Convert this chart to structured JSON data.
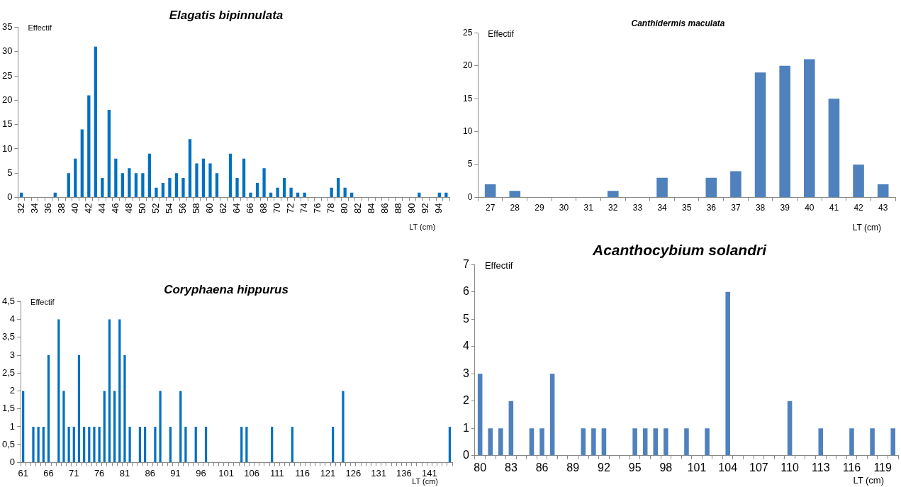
{
  "chart_data": [
    {
      "type": "bar",
      "title": "Elagatis bipinnulata",
      "xlabel": "LT (cm)",
      "ylabel": "Effectif",
      "color": "#0070c0",
      "categories": [
        "32",
        null,
        "34",
        null,
        "36",
        null,
        "38",
        null,
        "40",
        null,
        "42",
        null,
        "44",
        null,
        "46",
        null,
        "48",
        null,
        "50",
        null,
        "52",
        null,
        "54",
        null,
        "56",
        null,
        "58",
        null,
        "60",
        null,
        "62",
        null,
        "64",
        null,
        "66",
        null,
        "68",
        null,
        "70",
        null,
        "72",
        null,
        "74",
        null,
        "76",
        null,
        "78",
        null,
        "80",
        null,
        "82",
        null,
        "84",
        null,
        "86",
        null,
        "88",
        null,
        "90",
        null,
        "92",
        null,
        "94",
        null
      ],
      "values": [
        1,
        0,
        0,
        0,
        0,
        1,
        0,
        5,
        8,
        14,
        21,
        31,
        4,
        18,
        8,
        5,
        6,
        5,
        5,
        9,
        2,
        3,
        4,
        5,
        4,
        12,
        7,
        8,
        7,
        5,
        0,
        9,
        4,
        8,
        1,
        3,
        6,
        1,
        2,
        4,
        2,
        1,
        1,
        0,
        0,
        0,
        2,
        4,
        2,
        1,
        0,
        0,
        0,
        0,
        0,
        0,
        0,
        0,
        0,
        1,
        0,
        0,
        1,
        1
      ],
      "ylim": [
        0,
        35
      ],
      "yticks": [
        0,
        5,
        10,
        15,
        20,
        25,
        30,
        35
      ]
    },
    {
      "type": "bar",
      "title": "Canthidermis maculata",
      "xlabel": "LT (cm)",
      "ylabel": "Effectif",
      "color": "#4f81bd",
      "categories": [
        "27",
        "28",
        "29",
        "30",
        "31",
        "32",
        "33",
        "34",
        "35",
        "36",
        "37",
        "38",
        "39",
        "40",
        "41",
        "42",
        "43"
      ],
      "values": [
        2,
        1,
        0,
        0,
        0,
        1,
        0,
        3,
        0,
        3,
        4,
        19,
        20,
        21,
        15,
        5,
        2
      ],
      "ylim": [
        0,
        25
      ],
      "yticks": [
        0,
        5,
        10,
        15,
        20,
        25
      ]
    },
    {
      "type": "bar",
      "title": "Coryphaena hippurus",
      "xlabel": "LT (cm)",
      "ylabel": "Effectif",
      "color": "#0070c0",
      "categories": [
        "61",
        null,
        null,
        null,
        null,
        "66",
        null,
        null,
        null,
        null,
        "71",
        null,
        null,
        null,
        null,
        "76",
        null,
        null,
        null,
        null,
        "81",
        null,
        null,
        null,
        null,
        "86",
        null,
        null,
        null,
        null,
        "91",
        null,
        null,
        null,
        null,
        "96",
        null,
        null,
        null,
        null,
        "101",
        null,
        null,
        null,
        null,
        "106",
        null,
        null,
        null,
        null,
        "111",
        null,
        null,
        null,
        null,
        "116",
        null,
        null,
        null,
        null,
        "121",
        null,
        null,
        null,
        null,
        "126",
        null,
        null,
        null,
        null,
        "131",
        null,
        null,
        null,
        null,
        "136",
        null,
        null,
        null,
        null,
        "141",
        null,
        null,
        null,
        null
      ],
      "values": [
        2,
        0,
        1,
        1,
        1,
        3,
        0,
        4,
        2,
        1,
        1,
        3,
        1,
        1,
        1,
        1,
        2,
        4,
        2,
        4,
        3,
        1,
        0,
        1,
        1,
        0,
        1,
        2,
        0,
        1,
        0,
        2,
        1,
        0,
        1,
        0,
        1,
        0,
        0,
        0,
        0,
        0,
        0,
        1,
        1,
        0,
        0,
        0,
        0,
        1,
        0,
        0,
        0,
        1,
        0,
        0,
        0,
        0,
        0,
        0,
        0,
        1,
        0,
        2,
        0,
        0,
        0,
        0,
        0,
        0,
        0,
        0,
        0,
        0,
        0,
        0,
        0,
        0,
        0,
        0,
        0,
        0,
        0,
        0,
        1
      ],
      "ylim": [
        0,
        4.5
      ],
      "yticks": [
        0,
        {
          "value": 0.5,
          "label": "0,5"
        },
        1,
        {
          "value": 1.5,
          "label": "1,5"
        },
        2,
        {
          "value": 2.5,
          "label": "2,5"
        },
        3,
        {
          "value": 3.5,
          "label": "3,5"
        },
        4,
        {
          "value": 4.5,
          "label": "4,5"
        }
      ]
    },
    {
      "type": "bar",
      "title": "Acanthocybium solandri",
      "xlabel": "LT (cm)",
      "ylabel": "Effectif",
      "color": "#4f81bd",
      "categories": [
        "80",
        null,
        null,
        "83",
        null,
        null,
        "86",
        null,
        null,
        "89",
        null,
        null,
        "92",
        null,
        null,
        "95",
        null,
        null,
        "98",
        null,
        null,
        "101",
        null,
        null,
        "104",
        null,
        null,
        "107",
        null,
        null,
        "110",
        null,
        null,
        "113",
        null,
        null,
        "116",
        null,
        null,
        "119",
        null
      ],
      "values": [
        3,
        1,
        1,
        2,
        0,
        1,
        1,
        3,
        0,
        0,
        1,
        1,
        1,
        0,
        0,
        1,
        1,
        1,
        1,
        0,
        1,
        0,
        1,
        0,
        6,
        0,
        0,
        0,
        0,
        0,
        2,
        0,
        0,
        1,
        0,
        0,
        1,
        0,
        1,
        0,
        1
      ],
      "ylim": [
        0,
        7
      ],
      "yticks": [
        0,
        1,
        2,
        3,
        4,
        5,
        6,
        7
      ]
    }
  ]
}
